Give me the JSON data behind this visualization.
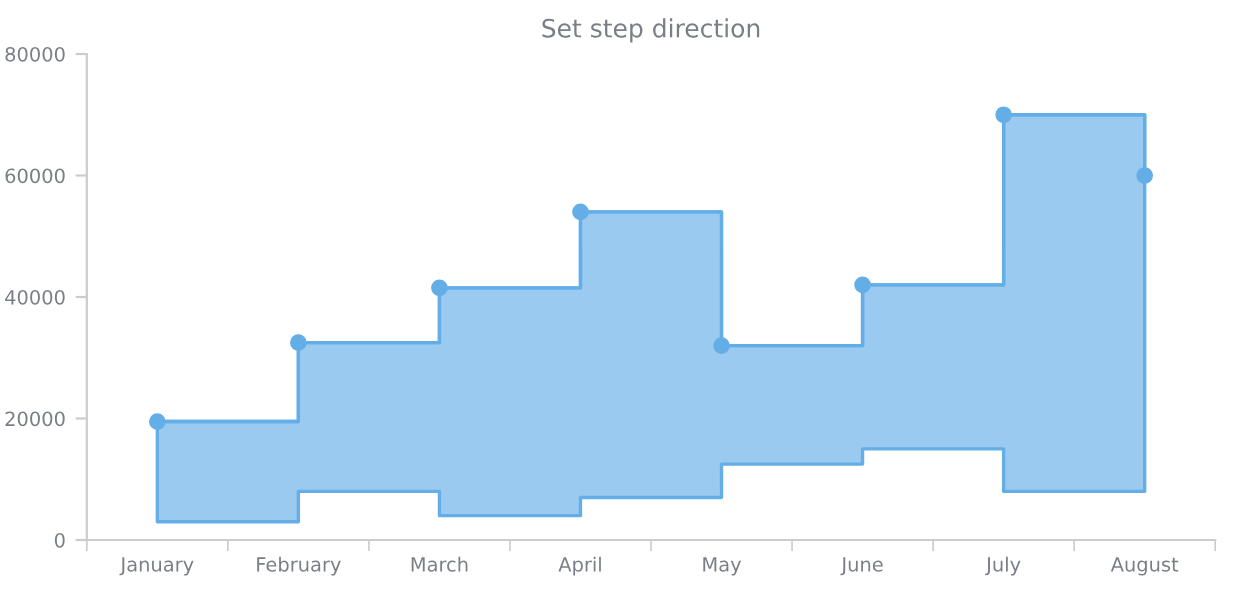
{
  "chart_data": {
    "type": "step",
    "title": "Set step direction",
    "categories": [
      "January",
      "February",
      "March",
      "April",
      "May",
      "June",
      "July",
      "August"
    ],
    "series": [
      {
        "color": "#64aee8",
        "values": [
          19500,
          32500,
          41500,
          54000,
          32000,
          42000,
          70000,
          60000
        ],
        "lower": [
          3000,
          8000,
          4000,
          7000,
          12500,
          15000,
          8000,
          15500
        ],
        "upper": [
          19500,
          32500,
          41500,
          54000,
          32000,
          42000,
          70000,
          60000
        ]
      }
    ],
    "ylim": [
      0,
      80000
    ],
    "yticks": [
      0,
      20000,
      40000,
      60000,
      80000
    ],
    "grid": false,
    "marker": "circle",
    "line_style": "solid"
  }
}
